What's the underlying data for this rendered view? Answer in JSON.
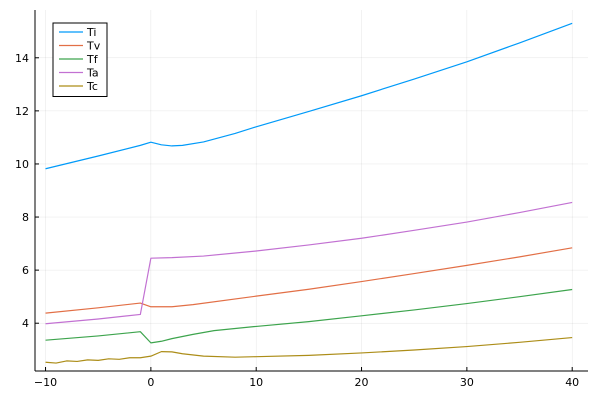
{
  "chart_data": {
    "type": "line",
    "title": "",
    "xlabel": "",
    "ylabel": "",
    "xlim": [
      -11,
      41.5
    ],
    "ylim": [
      2.2,
      15.8
    ],
    "xticks": [
      -10,
      0,
      10,
      20,
      30,
      40
    ],
    "yticks": [
      4,
      6,
      8,
      10,
      12,
      14
    ],
    "xtick_labels": [
      "−10",
      "0",
      "10",
      "20",
      "30",
      "40"
    ],
    "ytick_labels": [
      "4",
      "6",
      "8",
      "10",
      "12",
      "14"
    ],
    "grid": true,
    "legend_position": "top-left",
    "series": [
      {
        "name": "Ti",
        "color": "#009af9",
        "points": [
          [
            -10,
            9.82
          ],
          [
            -5,
            10.3
          ],
          [
            -1,
            10.7
          ],
          [
            0,
            10.82
          ],
          [
            1,
            10.72
          ],
          [
            2,
            10.68
          ],
          [
            3,
            10.7
          ],
          [
            5,
            10.83
          ],
          [
            8,
            11.15
          ],
          [
            10,
            11.4
          ],
          [
            15,
            11.98
          ],
          [
            20,
            12.57
          ],
          [
            25,
            13.2
          ],
          [
            30,
            13.85
          ],
          [
            35,
            14.56
          ],
          [
            40,
            15.3
          ]
        ]
      },
      {
        "name": "Tv",
        "color": "#e26f46",
        "points": [
          [
            -10,
            4.38
          ],
          [
            -5,
            4.58
          ],
          [
            -1,
            4.76
          ],
          [
            0,
            4.62
          ],
          [
            2,
            4.62
          ],
          [
            4,
            4.7
          ],
          [
            10,
            5.02
          ],
          [
            15,
            5.28
          ],
          [
            20,
            5.57
          ],
          [
            25,
            5.87
          ],
          [
            30,
            6.18
          ],
          [
            35,
            6.5
          ],
          [
            40,
            6.84
          ]
        ]
      },
      {
        "name": "Tf",
        "color": "#3da44d",
        "points": [
          [
            -10,
            3.36
          ],
          [
            -5,
            3.52
          ],
          [
            -1,
            3.68
          ],
          [
            0,
            3.26
          ],
          [
            1,
            3.32
          ],
          [
            2,
            3.42
          ],
          [
            4,
            3.58
          ],
          [
            6,
            3.72
          ],
          [
            10,
            3.88
          ],
          [
            15,
            4.06
          ],
          [
            20,
            4.28
          ],
          [
            25,
            4.5
          ],
          [
            30,
            4.74
          ],
          [
            35,
            5.0
          ],
          [
            40,
            5.27
          ]
        ]
      },
      {
        "name": "Ta",
        "color": "#c271d2",
        "points": [
          [
            -10,
            3.98
          ],
          [
            -5,
            4.16
          ],
          [
            -1,
            4.33
          ],
          [
            0,
            6.45
          ],
          [
            2,
            6.47
          ],
          [
            5,
            6.53
          ],
          [
            10,
            6.72
          ],
          [
            15,
            6.95
          ],
          [
            20,
            7.2
          ],
          [
            25,
            7.5
          ],
          [
            30,
            7.81
          ],
          [
            35,
            8.17
          ],
          [
            40,
            8.55
          ]
        ]
      },
      {
        "name": "Tc",
        "color": "#ac8d18",
        "points": [
          [
            -10,
            2.53
          ],
          [
            -9,
            2.5
          ],
          [
            -8,
            2.58
          ],
          [
            -7,
            2.56
          ],
          [
            -6,
            2.62
          ],
          [
            -5,
            2.6
          ],
          [
            -4,
            2.66
          ],
          [
            -3,
            2.64
          ],
          [
            -2,
            2.7
          ],
          [
            -1,
            2.7
          ],
          [
            0,
            2.76
          ],
          [
            1,
            2.93
          ],
          [
            2,
            2.92
          ],
          [
            3,
            2.85
          ],
          [
            5,
            2.76
          ],
          [
            8,
            2.72
          ],
          [
            10,
            2.74
          ],
          [
            15,
            2.79
          ],
          [
            20,
            2.88
          ],
          [
            25,
            2.99
          ],
          [
            30,
            3.12
          ],
          [
            35,
            3.28
          ],
          [
            40,
            3.46
          ]
        ]
      }
    ]
  }
}
